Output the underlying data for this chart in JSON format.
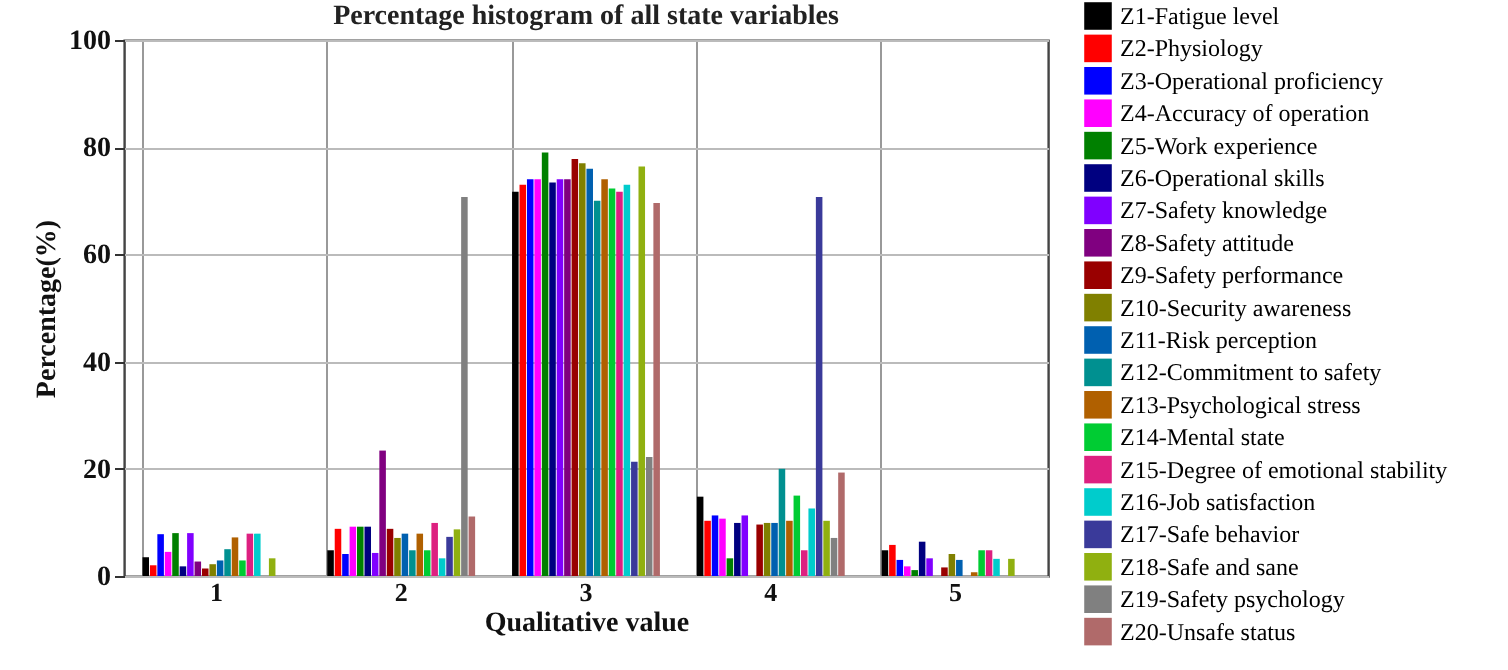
{
  "chart_data": {
    "type": "bar",
    "title": "Percentage histogram of all state variables",
    "xlabel": "Qualitative value",
    "ylabel": "Percentage(%)",
    "categories": [
      "1",
      "2",
      "3",
      "4",
      "5"
    ],
    "ylim": [
      0,
      100
    ],
    "yticks": [
      0,
      20,
      40,
      60,
      80,
      100
    ],
    "grid": true,
    "legend": "right",
    "series": [
      {
        "name": "Z1-Fatigue level",
        "color": "#000000",
        "values": [
          3.5,
          4.8,
          71.7,
          14.8,
          4.8
        ]
      },
      {
        "name": "Z2-Physiology",
        "color": "#ff0000",
        "values": [
          2,
          8.8,
          73,
          10.3,
          5.8
        ]
      },
      {
        "name": "Z3-Operational proficiency",
        "color": "#0000ff",
        "values": [
          7.8,
          4.1,
          74,
          11.3,
          3
        ]
      },
      {
        "name": "Z4-Accuracy of operation",
        "color": "#ff00ff",
        "values": [
          4.5,
          9.2,
          74,
          10.7,
          1.8
        ]
      },
      {
        "name": "Z5-Work experience",
        "color": "#008000",
        "values": [
          8,
          9.2,
          79,
          3.3,
          1.1
        ]
      },
      {
        "name": "Z6-Operational skills",
        "color": "#000080",
        "values": [
          1.8,
          9.2,
          73.4,
          9.9,
          6.4
        ]
      },
      {
        "name": "Z7-Safety knowledge",
        "color": "#8000ff",
        "values": [
          8,
          4.3,
          74,
          11.3,
          3.3
        ]
      },
      {
        "name": "Z8-Safety attitude",
        "color": "#800080",
        "values": [
          2.7,
          23.4,
          74,
          0,
          0
        ]
      },
      {
        "name": "Z9-Safety performance",
        "color": "#990000",
        "values": [
          1.4,
          8.8,
          77.8,
          9.6,
          1.6
        ]
      },
      {
        "name": "Z10-Security awareness",
        "color": "#808000",
        "values": [
          2.2,
          7.1,
          77,
          9.9,
          4.1
        ]
      },
      {
        "name": "Z11-Risk perception",
        "color": "#0060b0",
        "values": [
          2.9,
          7.9,
          76,
          9.9,
          3
        ]
      },
      {
        "name": "Z12-Commitment to safety",
        "color": "#009090",
        "values": [
          5,
          4.8,
          70,
          20,
          0
        ]
      },
      {
        "name": "Z13-Psychological stress",
        "color": "#b06000",
        "values": [
          7.2,
          7.9,
          74,
          10.3,
          0.7
        ]
      },
      {
        "name": "Z14-Mental state",
        "color": "#00cc33",
        "values": [
          2.9,
          4.8,
          72.3,
          15,
          4.8
        ]
      },
      {
        "name": "Z15-Degree of emotional stability",
        "color": "#dd2080",
        "values": [
          7.9,
          9.9,
          71.7,
          4.8,
          4.8
        ]
      },
      {
        "name": "Z16-Job satisfaction",
        "color": "#00cccc",
        "values": [
          7.9,
          3.3,
          73,
          12.6,
          3.2
        ]
      },
      {
        "name": "Z17-Safe behavior",
        "color": "#3a3a9a",
        "values": [
          0,
          7.3,
          21.3,
          70.7,
          0
        ]
      },
      {
        "name": "Z18-Safe and sane",
        "color": "#90b010",
        "values": [
          3.3,
          8.7,
          76.4,
          10.3,
          3.2
        ]
      },
      {
        "name": "Z19-Safety psychology",
        "color": "#808080",
        "values": [
          0,
          70.7,
          22.2,
          7.1,
          0
        ]
      },
      {
        "name": "Z20-Unsafe status",
        "color": "#b06a6a",
        "values": [
          0,
          11.1,
          69.6,
          19.3,
          0
        ]
      }
    ]
  }
}
